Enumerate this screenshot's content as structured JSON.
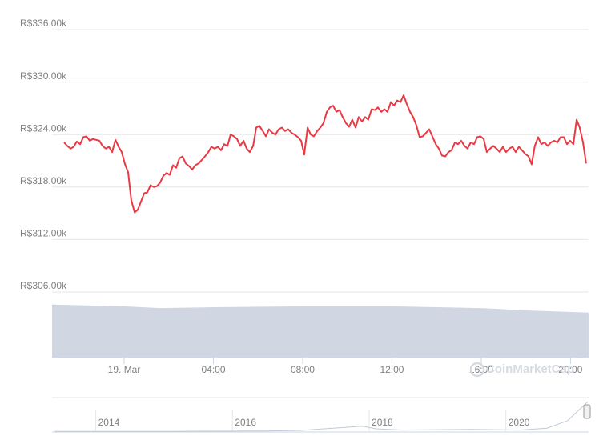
{
  "chart_data": [
    {
      "type": "line",
      "color": "#ea3943",
      "grid": true,
      "ylim": [
        306000,
        336000
      ],
      "yticks": [
        {
          "value": 306000,
          "label": "R$306.00k"
        },
        {
          "value": 312000,
          "label": "R$312.00k"
        },
        {
          "value": 318000,
          "label": "R$318.00k"
        },
        {
          "value": 324000,
          "label": "R$324.00k"
        },
        {
          "value": 330000,
          "label": "R$330.00k"
        },
        {
          "value": 336000,
          "label": "R$336.00k"
        }
      ],
      "xlim": [
        -3.23,
        20.81
      ],
      "xticks": [
        {
          "value": 0,
          "label": "19. Mar"
        },
        {
          "value": 4,
          "label": "04:00"
        },
        {
          "value": 8,
          "label": "08:00"
        },
        {
          "value": 12,
          "label": "12:00"
        },
        {
          "value": 16,
          "label": "16:00"
        },
        {
          "value": 20,
          "label": "20:00"
        }
      ],
      "x": [
        -2.69,
        -2.55,
        -2.4,
        -2.26,
        -2.12,
        -1.97,
        -1.83,
        -1.69,
        -1.54,
        -1.4,
        -1.26,
        -1.11,
        -0.97,
        -0.82,
        -0.68,
        -0.54,
        -0.39,
        -0.25,
        -0.11,
        0.04,
        0.18,
        0.32,
        0.47,
        0.61,
        0.75,
        0.9,
        1.04,
        1.18,
        1.33,
        1.47,
        1.61,
        1.76,
        1.9,
        2.04,
        2.19,
        2.33,
        2.48,
        2.62,
        2.76,
        2.91,
        3.05,
        3.19,
        3.34,
        3.48,
        3.62,
        3.77,
        3.91,
        4.05,
        4.2,
        4.34,
        4.48,
        4.63,
        4.77,
        4.92,
        5.06,
        5.2,
        5.35,
        5.49,
        5.63,
        5.78,
        5.92,
        6.06,
        6.21,
        6.35,
        6.49,
        6.64,
        6.78,
        6.92,
        7.07,
        7.21,
        7.35,
        7.5,
        7.64,
        7.79,
        7.93,
        8.07,
        8.22,
        8.36,
        8.5,
        8.65,
        8.79,
        8.93,
        9.08,
        9.22,
        9.36,
        9.51,
        9.65,
        9.79,
        9.94,
        10.08,
        10.22,
        10.37,
        10.51,
        10.66,
        10.8,
        10.94,
        11.09,
        11.23,
        11.37,
        11.52,
        11.66,
        11.8,
        11.95,
        12.09,
        12.23,
        12.38,
        12.52,
        12.66,
        12.81,
        12.95,
        13.09,
        13.24,
        13.38,
        13.53,
        13.67,
        13.81,
        13.96,
        14.1,
        14.24,
        14.39,
        14.53,
        14.67,
        14.82,
        14.96,
        15.1,
        15.25,
        15.39,
        15.53,
        15.68,
        15.82,
        15.96,
        16.11,
        16.25,
        16.4,
        16.54,
        16.68,
        16.83,
        16.97,
        17.11,
        17.26,
        17.4,
        17.54,
        17.69,
        17.83,
        17.97,
        18.12,
        18.26,
        18.4,
        18.55,
        18.69,
        18.83,
        18.98,
        19.12,
        19.27,
        19.41,
        19.55,
        19.7,
        19.84,
        19.98,
        20.13,
        20.27,
        20.41,
        20.56,
        20.7
      ],
      "values": [
        323100,
        322700,
        322400,
        322600,
        323200,
        322900,
        323700,
        323800,
        323300,
        323500,
        323400,
        323300,
        322700,
        322400,
        322600,
        322000,
        323400,
        322600,
        322000,
        320600,
        319700,
        316500,
        315100,
        315400,
        316300,
        317300,
        317400,
        318200,
        318000,
        318100,
        318500,
        319300,
        319600,
        319400,
        320500,
        320200,
        321300,
        321500,
        320700,
        320400,
        320000,
        320500,
        320700,
        321100,
        321500,
        322000,
        322600,
        322400,
        322600,
        322200,
        322900,
        322700,
        324000,
        323800,
        323500,
        322700,
        323300,
        322400,
        322000,
        322700,
        324800,
        325000,
        324400,
        323800,
        324600,
        324200,
        324000,
        324600,
        324800,
        324400,
        324600,
        324200,
        324000,
        323700,
        323300,
        321700,
        324800,
        324000,
        323800,
        324400,
        324800,
        325300,
        326600,
        327100,
        327300,
        326600,
        326800,
        326000,
        325300,
        324900,
        325700,
        324800,
        326000,
        325500,
        326000,
        325700,
        326900,
        326800,
        327100,
        326600,
        326900,
        326600,
        327700,
        327300,
        327900,
        327700,
        328500,
        327500,
        326600,
        326000,
        325100,
        323700,
        323800,
        324200,
        324600,
        323800,
        322900,
        322400,
        321600,
        321500,
        322000,
        322200,
        323100,
        322900,
        323300,
        322700,
        322400,
        323100,
        322900,
        323700,
        323800,
        323500,
        322000,
        322400,
        322700,
        322400,
        322000,
        322600,
        322000,
        322400,
        322600,
        322000,
        322600,
        322200,
        321800,
        321500,
        320600,
        322700,
        323700,
        322900,
        323100,
        322700,
        323100,
        323300,
        323100,
        323700,
        323700,
        322900,
        323300,
        322900,
        325700,
        324800,
        323100,
        320700
      ]
    },
    {
      "type": "area",
      "color": "#d1d6e3",
      "ylim": [
        0,
        1
      ],
      "xlim": [
        -3.23,
        20.81
      ],
      "x": [
        -3.23,
        -1,
        0,
        1.6,
        4,
        8,
        12,
        14,
        16,
        18,
        20.81
      ],
      "values": [
        0.92,
        0.9,
        0.89,
        0.86,
        0.875,
        0.89,
        0.89,
        0.875,
        0.86,
        0.82,
        0.78
      ],
      "watermark": "CoinMarketCap"
    },
    {
      "type": "navigator",
      "color": "#c3c9d6",
      "ylim": [
        0,
        1
      ],
      "xlim": [
        2013.36,
        2021.21
      ],
      "xticks": [
        2014,
        2016,
        2018,
        2020
      ],
      "x": [
        2013.4,
        2015.0,
        2016.5,
        2017.0,
        2017.9,
        2018.1,
        2018.5,
        2019.5,
        2020.2,
        2020.6,
        2020.9,
        2021.0,
        2021.2
      ],
      "values": [
        0.02,
        0.02,
        0.03,
        0.05,
        0.18,
        0.1,
        0.06,
        0.08,
        0.06,
        0.12,
        0.35,
        0.55,
        0.95
      ]
    }
  ]
}
